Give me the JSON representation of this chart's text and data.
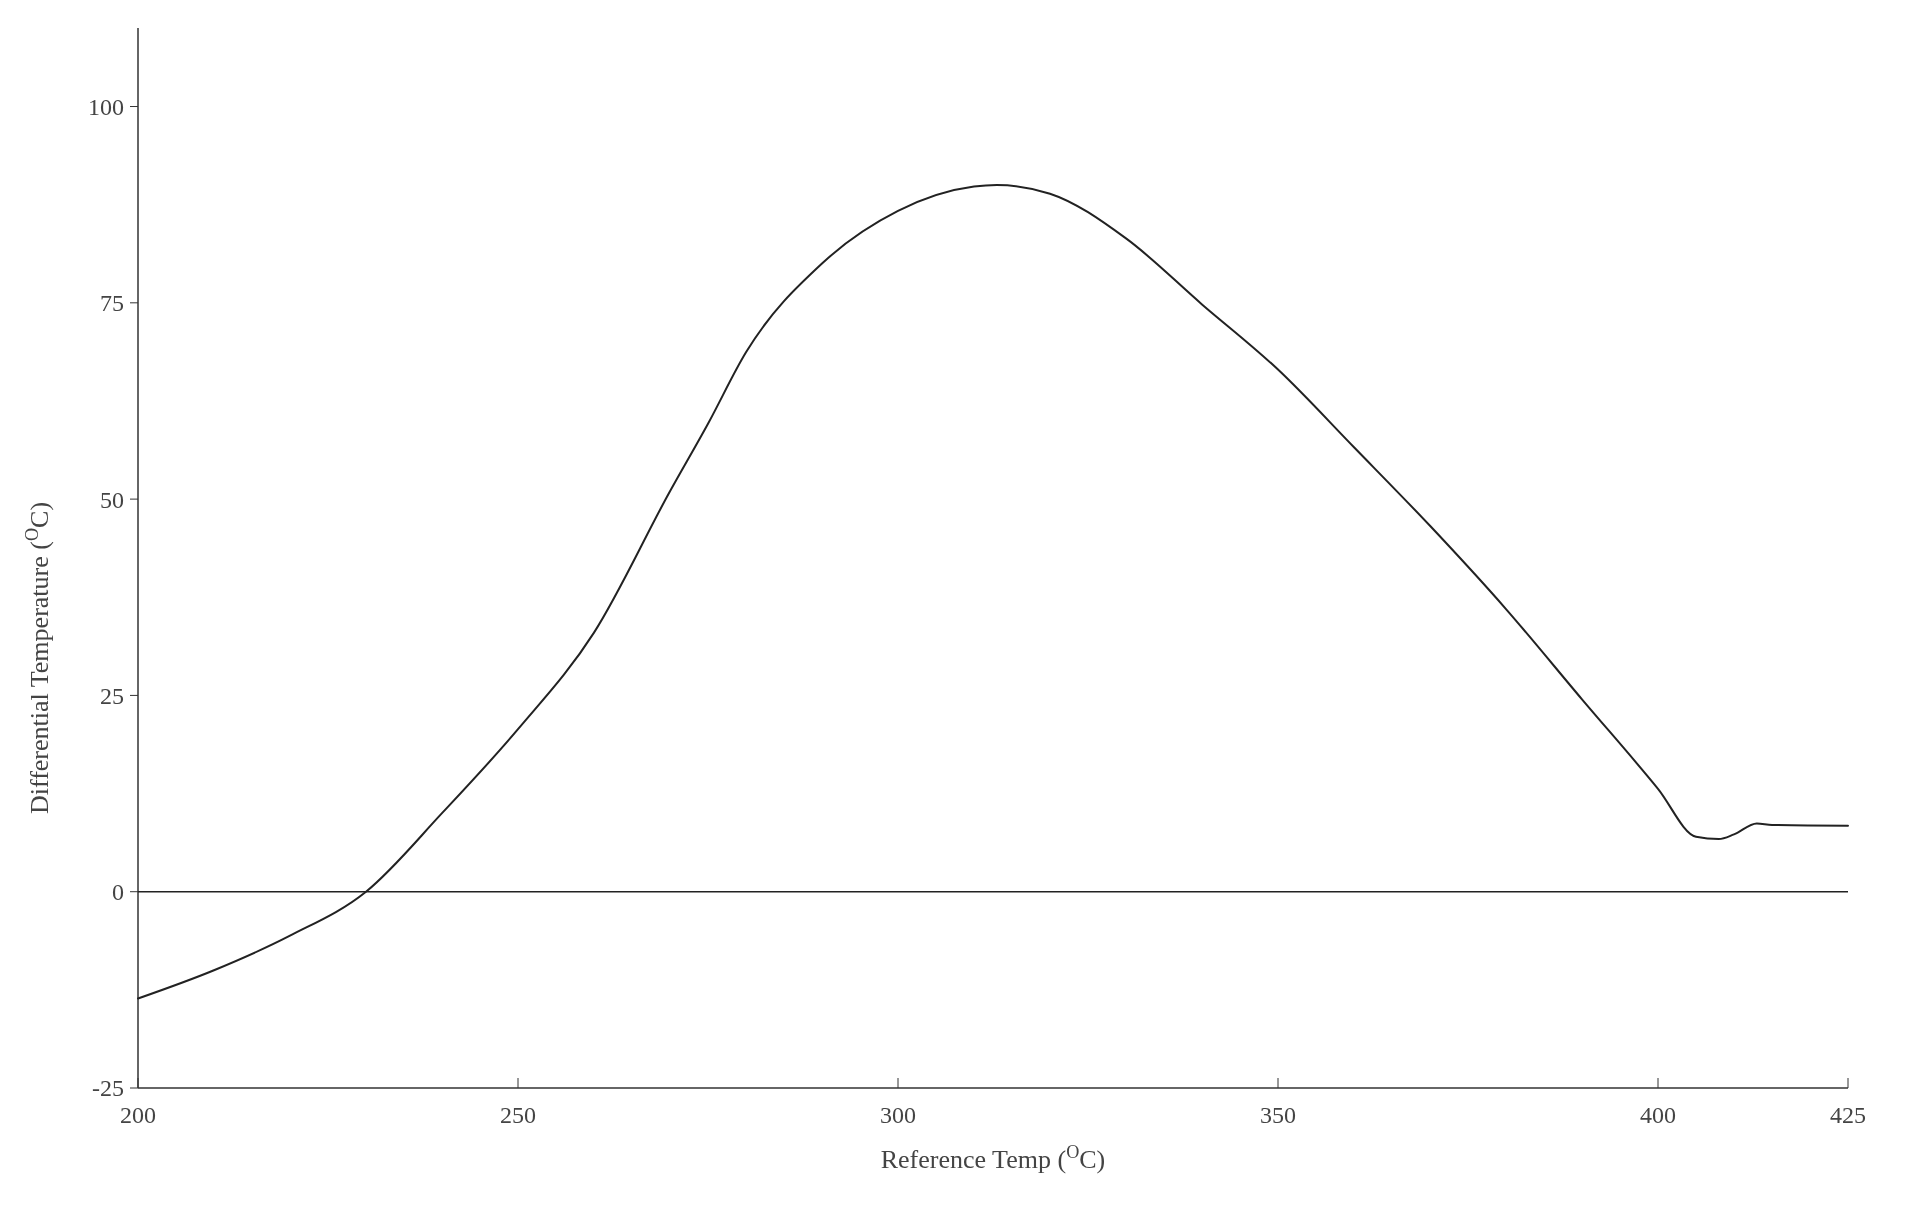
{
  "chart_data": {
    "type": "line",
    "xlabel": "Reference Temp ($^{O}$C)",
    "ylabel": "Differential Temperature ($^{O}$C)",
    "x": [
      200,
      210,
      220,
      230,
      240,
      250,
      260,
      270,
      275,
      280,
      290,
      300,
      310,
      313,
      320,
      330,
      340,
      350,
      360,
      370,
      380,
      390,
      400,
      405,
      408,
      410,
      413,
      415,
      425
    ],
    "series": [
      {
        "color": "#222222",
        "values": [
          -13.6,
          -10,
          -5.6,
          0,
          10,
          20.7,
          33,
          51,
          59.6,
          68.7,
          80,
          86.7,
          89.8,
          90,
          88.9,
          83.2,
          74.8,
          66.5,
          56.6,
          46.6,
          36,
          24.5,
          13.1,
          7,
          6.7,
          7.3,
          8.7,
          8.5,
          8.4
        ]
      }
    ],
    "xlim": [
      200,
      425
    ],
    "ylim": [
      -25,
      110
    ],
    "xticks": [
      200,
      250,
      300,
      350,
      400,
      425
    ],
    "yticks": [
      -25,
      0,
      25,
      50,
      75,
      100
    ],
    "ref_lines": [
      {
        "axis": "y",
        "value": 0,
        "color": "#222222"
      }
    ],
    "grid": false,
    "marker": "none",
    "line_style": "solid"
  }
}
